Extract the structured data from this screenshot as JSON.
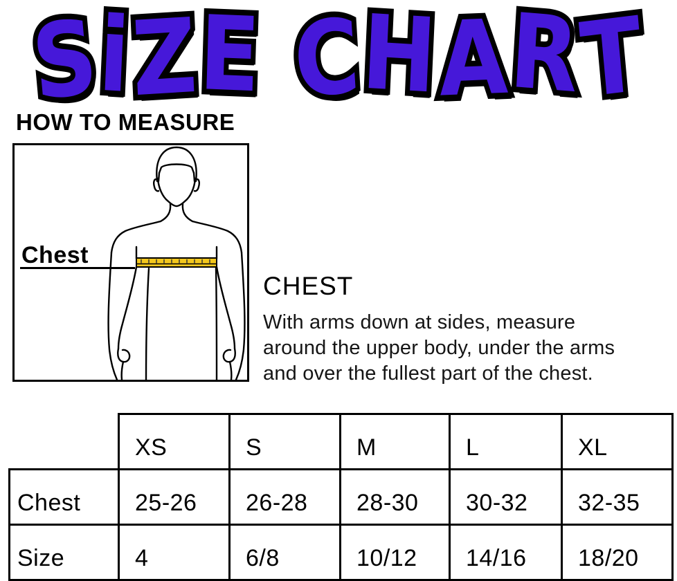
{
  "title": {
    "text": "SiZE CHART",
    "fill_color": "#4618d9",
    "outline_color": "#000000"
  },
  "measure_section": {
    "heading": "HOW TO MEASURE",
    "diagram": {
      "label": "Chest",
      "figure": "male-torso-outline",
      "tape_color": "#f3c71d",
      "line_color": "#000000"
    },
    "instruction": {
      "heading": "CHEST",
      "lines": [
        "With arms down at sides, measure",
        "around the upper body, under the arms",
        "and over the fullest part of the chest."
      ]
    }
  },
  "size_table": {
    "columns": [
      "XS",
      "S",
      "M",
      "L",
      "XL"
    ],
    "rows": [
      {
        "label": "Chest",
        "values": [
          "25-26",
          "26-28",
          "28-30",
          "30-32",
          "32-35"
        ]
      },
      {
        "label": "Size",
        "values": [
          "4",
          "6/8",
          "10/12",
          "14/16",
          "18/20"
        ]
      }
    ]
  }
}
